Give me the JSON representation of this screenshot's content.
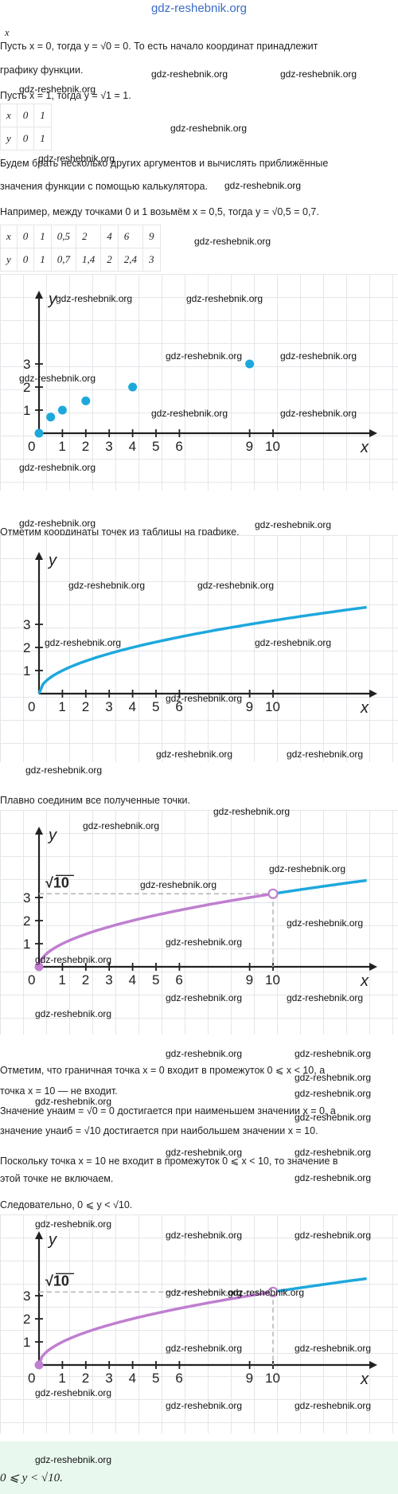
{
  "site": {
    "title": "gdz-reshebnik.org",
    "watermark": "gdz-reshebnik.org"
  },
  "text": {
    "x_label": "x",
    "line1": "Пусть x = 0, тогда y = √0 = 0. То есть начало координат принадлежит",
    "line2": "графику функции.",
    "line3": "Пусть x = 1, тогда y = √1 = 1.",
    "line4": "Будем брать несколько других аргументов и вычислять приближённые",
    "line5": "значения функции с помощью калькулятора.",
    "line6": "Например, между точками 0 и 1 возьмём x = 0,5, тогда y = √0,5 = 0,7.",
    "line7": "Отметим координаты точек из таблицы на графике.",
    "line8": "Плавно соединим все полученные точки.",
    "line9": "Отметим, что граничная точка x = 0 входит в промежуток 0 ⩽ x < 10, а",
    "line10": "точка x = 10 — не входит.",
    "line11": "Значение yнаим = √0 = 0 достигается при наименьшем значении x = 0, а",
    "line12": "значение yнаиб = √10 достигается при наибольшем значении x = 10.",
    "line13": "Поскольку точка x = 10 не входит в промежуток 0 ⩽ x < 10, то значение в",
    "line14": "этой точке не включаем.",
    "line15": "Следовательно, 0 ⩽ y < √10.",
    "answer": "0 ⩽ y < √10."
  },
  "table1": {
    "rows": [
      [
        "x",
        "0",
        "1"
      ],
      [
        "y",
        "0",
        "1"
      ]
    ]
  },
  "table2": {
    "rows": [
      [
        "x",
        "0",
        "1",
        "0,5",
        "2",
        "4",
        "6",
        "9"
      ],
      [
        "y",
        "0",
        "1",
        "0,7",
        "1,4",
        "2",
        "2,4",
        "3"
      ]
    ]
  },
  "graphs": {
    "x_axis_label": "x",
    "y_axis_label": "y",
    "origin_label": "0",
    "x_ticks": [
      "1",
      "2",
      "3",
      "4",
      "5",
      "6",
      "9",
      "10"
    ],
    "y_ticks": [
      "1",
      "2",
      "3"
    ],
    "sqrt10_label": "√10"
  },
  "chart_data": [
    {
      "type": "scatter",
      "x": [
        0,
        0.5,
        1,
        2,
        4,
        9
      ],
      "y": [
        0,
        0.7,
        1,
        1.4,
        2,
        3
      ],
      "point_color": "#1da8dc"
    },
    {
      "type": "line",
      "function": "y = √x",
      "x_range": [
        0,
        14
      ],
      "line_color": "#1da8dc"
    },
    {
      "type": "line",
      "function": "y = √x",
      "highlight_range": [
        0,
        10
      ],
      "line_color": "#1da8dc",
      "highlight_color": "#c07fd0",
      "marked_points": [
        [
          0,
          0
        ],
        [
          10,
          3.16
        ]
      ]
    },
    {
      "type": "line",
      "function": "y = √x",
      "highlight_range": [
        0,
        10
      ],
      "line_color": "#1da8dc",
      "highlight_color": "#c07fd0",
      "marked_points": [
        [
          0,
          0
        ],
        [
          10,
          3.16
        ]
      ]
    }
  ],
  "colors": {
    "blue": "#1da8dc",
    "purple": "#c07fd0",
    "axis": "#222222",
    "dash": "#b8b8b8",
    "answer_bg": "#e9f8ee",
    "title": "#3a6cc9"
  }
}
